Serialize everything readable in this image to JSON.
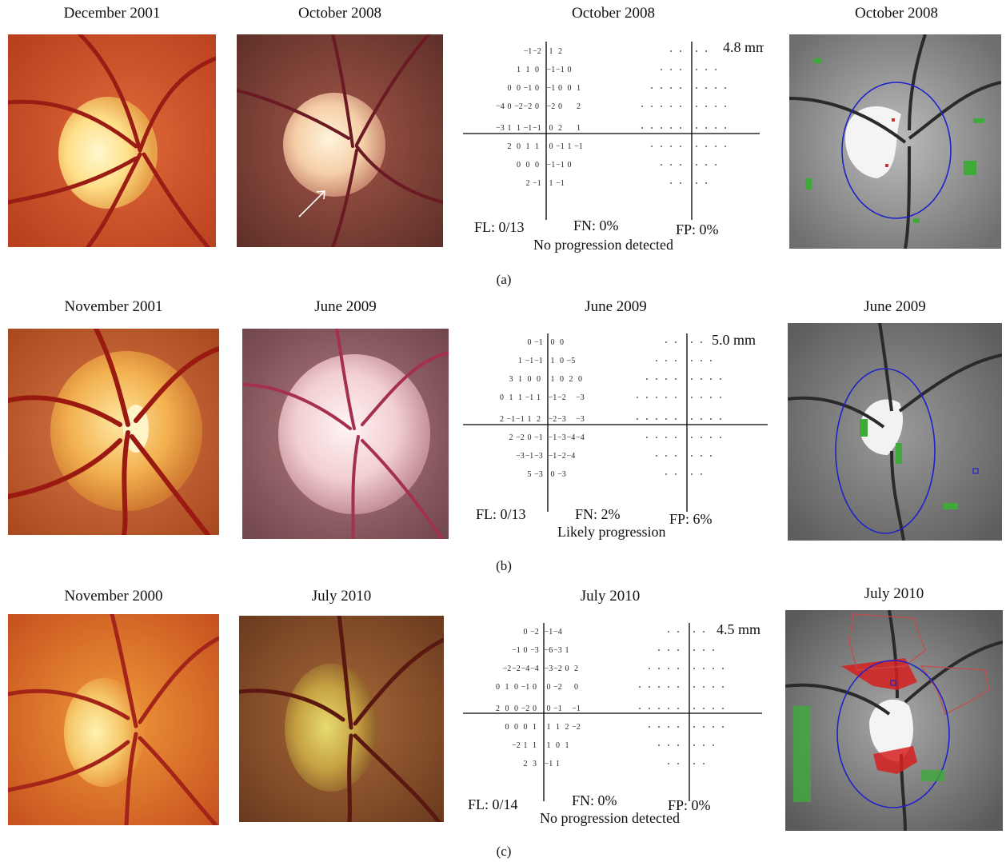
{
  "panels": [
    {
      "label": "(a)",
      "titles": [
        "December 2001",
        "October 2008",
        "October 2008",
        "October 2008"
      ],
      "vf": {
        "size": "4.8 mm",
        "fl": "FL: 0/13",
        "fn": "FN: 0%",
        "fp": "FP: 0%",
        "result": "No progression detected",
        "rows": [
          [
            "−1",
            "−2",
            "1",
            "2"
          ],
          [
            "1",
            "1",
            "0",
            "−1",
            "−1",
            "0"
          ],
          [
            "0",
            "0",
            "−1",
            "0",
            "−1",
            "0",
            "0",
            "1"
          ],
          [
            "−4",
            "0",
            "−2",
            "−2",
            "0",
            "−2",
            "0",
            "",
            "2"
          ],
          [
            "−3",
            "1",
            "1",
            "−1",
            "−1",
            "0",
            "2",
            "",
            "1"
          ],
          [
            "2",
            "0",
            "1",
            "1",
            "0",
            "−1",
            "1",
            "−1"
          ],
          [
            "0",
            "0",
            "0",
            "−1",
            "−1",
            "0"
          ],
          [
            "2",
            "−1",
            "1",
            "−1"
          ]
        ]
      }
    },
    {
      "label": "(b)",
      "titles": [
        "November 2001",
        "June 2009",
        "June 2009",
        "June 2009"
      ],
      "vf": {
        "size": "5.0 mm",
        "fl": "FL: 0/13",
        "fn": "FN: 2%",
        "fp": "FP: 6%",
        "result": "Likely progression",
        "rows": [
          [
            "0",
            "−1",
            "0",
            "0"
          ],
          [
            "1",
            "−1",
            "−1",
            "1",
            "0",
            "−5"
          ],
          [
            "3",
            "1",
            "0",
            "0",
            "1",
            "0",
            "2",
            "0"
          ],
          [
            "0",
            "1",
            "1",
            "−1",
            "1",
            "−1",
            "−2",
            "",
            "−3"
          ],
          [
            "2",
            "−1",
            "−1",
            "1",
            "2",
            "−2",
            "−3",
            "",
            "−3"
          ],
          [
            "2",
            "−2",
            "0",
            "−1",
            "−1",
            "−3",
            "−4",
            "−4"
          ],
          [
            "−3",
            "−1",
            "−3",
            "−1",
            "−2",
            "−4"
          ],
          [
            "5",
            "−3",
            "0",
            "−3"
          ]
        ]
      }
    },
    {
      "label": "(c)",
      "titles": [
        "November 2000",
        "July 2010",
        "July 2010",
        "July 2010"
      ],
      "vf": {
        "size": "4.5 mm",
        "fl": "FL: 0/14",
        "fn": "FN: 0%",
        "fp": "FP: 0%",
        "result": "No progression detected",
        "rows": [
          [
            "0",
            "−2",
            "−1",
            "−4"
          ],
          [
            "−1",
            "0",
            "−3",
            "−6",
            "−3",
            "1"
          ],
          [
            "−2",
            "−2",
            "−4",
            "−4",
            "−3",
            "−2",
            "0",
            "2"
          ],
          [
            "0",
            "1",
            "0",
            "−1",
            "0",
            "0",
            "−2",
            "",
            "0"
          ],
          [
            "2",
            "0",
            "0",
            "−2",
            "0",
            "0",
            "−1",
            "",
            "−1"
          ],
          [
            "0",
            "0",
            "0",
            "1",
            "1",
            "1",
            "2",
            "−2"
          ],
          [
            "−2",
            "1",
            "1",
            "1",
            "0",
            "1"
          ],
          [
            "2",
            "3",
            "−1",
            "1"
          ]
        ]
      }
    }
  ]
}
